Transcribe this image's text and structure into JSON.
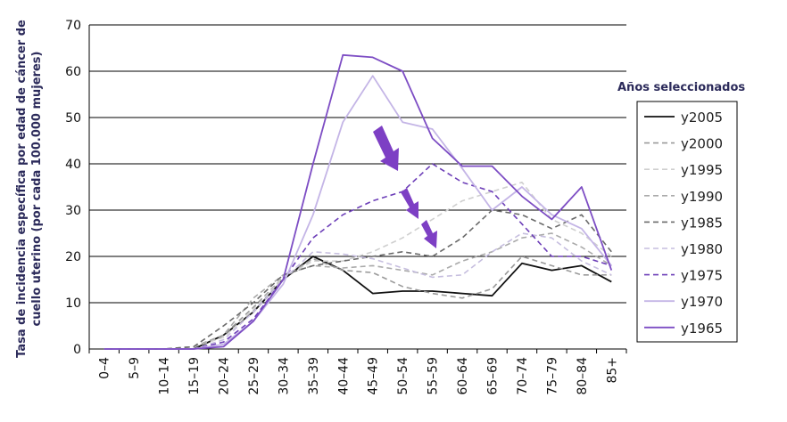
{
  "chart_data": {
    "type": "line",
    "ylabel_line1": "Tasa de incidencia específica por edad de cáncer de",
    "ylabel_line2": "cuello uterino (por cada 100.000 mujeres)",
    "ylim": [
      0,
      70
    ],
    "yticks": [
      "0",
      "10",
      "20",
      "30",
      "40",
      "50",
      "60",
      "70"
    ],
    "grid": true,
    "legend_title": "Años seleccionados",
    "legend_position": "right",
    "categories": [
      "0–4",
      "5–9",
      "10–14",
      "15–19",
      "20–24",
      "25–29",
      "30–34",
      "35–39",
      "40–44",
      "45–49",
      "50–54",
      "55–59",
      "60–64",
      "65–69",
      "70–74",
      "75–79",
      "80–84",
      "85+"
    ],
    "series": [
      {
        "name": "y2005",
        "color": "#111111",
        "dash": "solid",
        "values": [
          0,
          0,
          0,
          0,
          3,
          8,
          15,
          20,
          17,
          12,
          12.5,
          12.5,
          12,
          11.5,
          18.5,
          17,
          18,
          14.5
        ]
      },
      {
        "name": "y2000",
        "color": "#9a9a9a",
        "dash": "dashed",
        "values": [
          0,
          0,
          0,
          0.5,
          3,
          9,
          15.5,
          19.5,
          17,
          16.5,
          13.5,
          12,
          11,
          13,
          20,
          18,
          16,
          16
        ]
      },
      {
        "name": "y1995",
        "color": "#cfcfcf",
        "dash": "dashed",
        "values": [
          0,
          0,
          0,
          0.5,
          2.5,
          8.5,
          15.5,
          19,
          19,
          21,
          24,
          28,
          32,
          34,
          36,
          28,
          25,
          20
        ]
      },
      {
        "name": "y1990",
        "color": "#aaaaaa",
        "dash": "dashed",
        "values": [
          0,
          0,
          0,
          0.5,
          3,
          11,
          16,
          18,
          17.5,
          18,
          17,
          16,
          19,
          21,
          24,
          25,
          22,
          18
        ]
      },
      {
        "name": "y1985",
        "color": "#6a6a6a",
        "dash": "dashed",
        "values": [
          0,
          0,
          0,
          0.5,
          5,
          10,
          16,
          18,
          19,
          20,
          21,
          20,
          24,
          30,
          29,
          26,
          29,
          21
        ]
      },
      {
        "name": "y1980",
        "color": "#c6bedf",
        "dash": "dashed",
        "values": [
          0,
          0,
          0,
          0,
          2,
          8,
          15,
          21,
          20.5,
          19.5,
          17.5,
          15.5,
          16,
          21,
          25,
          24,
          19,
          16
        ]
      },
      {
        "name": "y1975",
        "color": "#6d3fb8",
        "dash": "dashed",
        "values": [
          0,
          0,
          0,
          0,
          1.5,
          6.5,
          15,
          24,
          29,
          32,
          34,
          40,
          36,
          34,
          27,
          20,
          20,
          18
        ]
      },
      {
        "name": "y1970",
        "color": "#c4b5e6",
        "dash": "solid",
        "values": [
          0,
          0,
          0,
          0,
          1,
          6,
          14,
          29,
          49,
          59,
          49,
          47.5,
          39,
          30,
          35,
          29,
          26,
          18
        ]
      },
      {
        "name": "y1965",
        "color": "#7d4dc4",
        "dash": "solid",
        "values": [
          0,
          0,
          0,
          0,
          0.5,
          6,
          15,
          40,
          63.5,
          63,
          60,
          45.5,
          39.5,
          39.5,
          33,
          28,
          35,
          17
        ]
      }
    ]
  }
}
